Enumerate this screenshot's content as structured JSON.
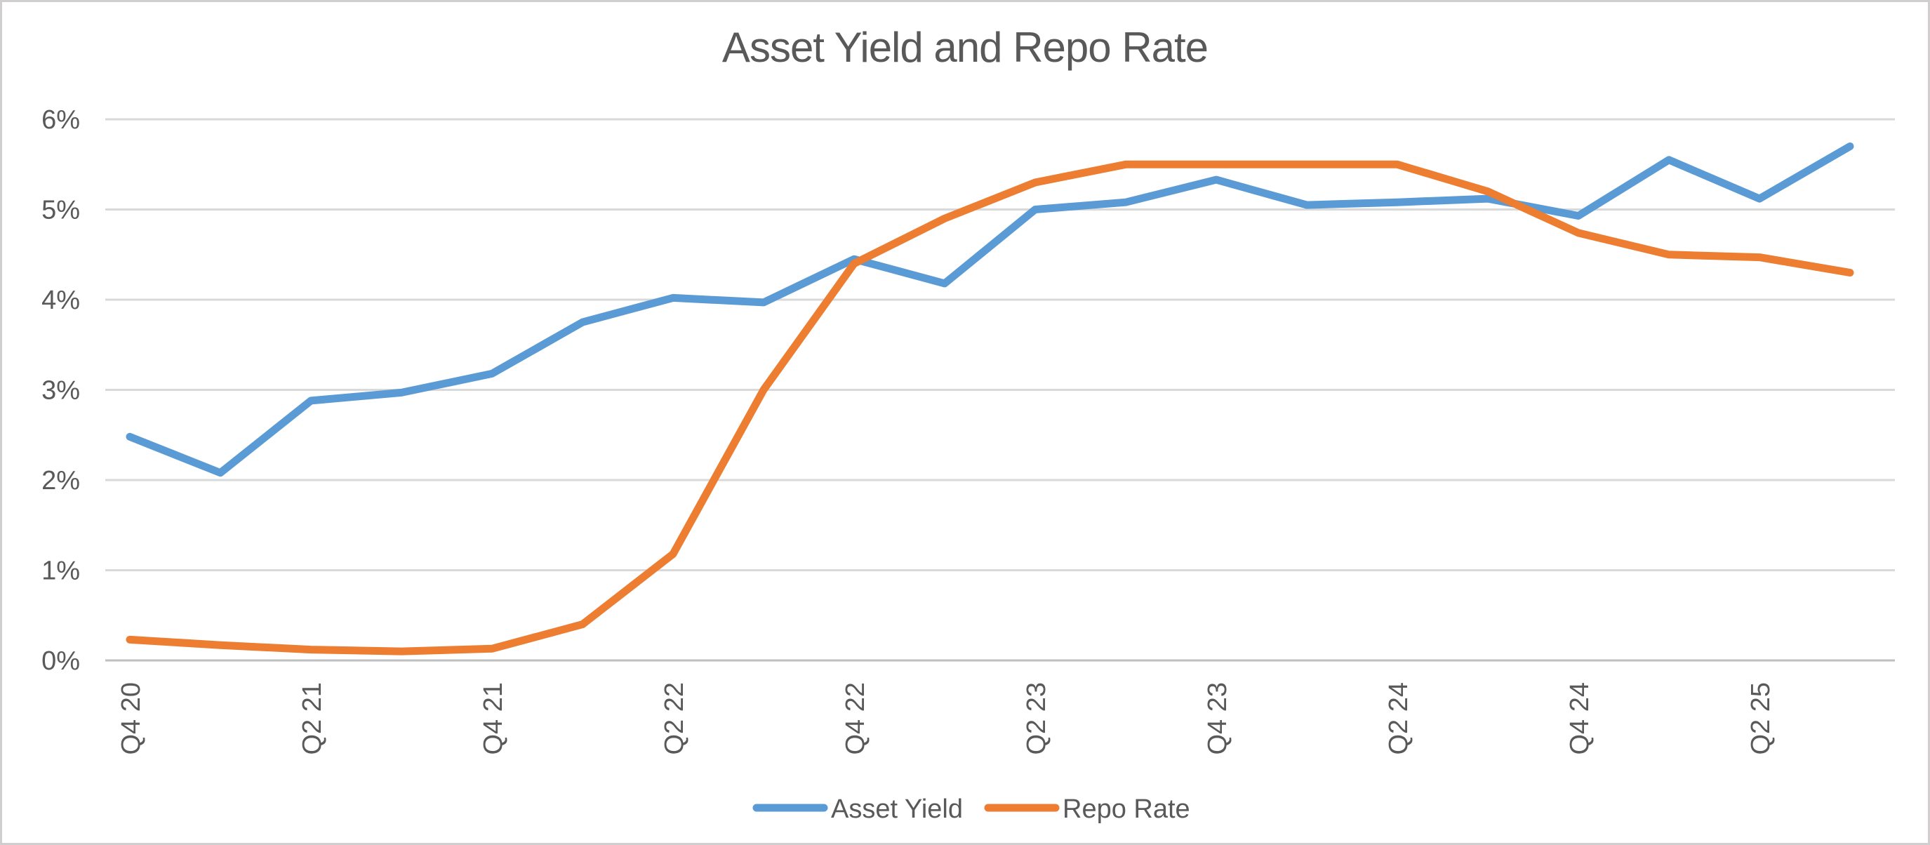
{
  "chart_data": {
    "type": "line",
    "title": "Asset Yield and Repo Rate",
    "categories": [
      "Q4 20",
      "Q1 21",
      "Q2 21",
      "Q3 21",
      "Q4 21",
      "Q1 22",
      "Q2 22",
      "Q3 22",
      "Q4 22",
      "Q1 23",
      "Q2 23",
      "Q3 23",
      "Q4 23",
      "Q1 24",
      "Q2 24",
      "Q3 24",
      "Q4 24",
      "Q1 25",
      "Q2 25",
      "Q3 25"
    ],
    "x_tick_labels": [
      "Q4 20",
      "Q2 21",
      "Q4 21",
      "Q2 22",
      "Q4 22",
      "Q2 23",
      "Q4 23",
      "Q2 24",
      "Q4 24",
      "Q2 25"
    ],
    "x_tick_every": 2,
    "y_ticks": [
      "0%",
      "1%",
      "2%",
      "3%",
      "4%",
      "5%",
      "6%"
    ],
    "ylim": [
      0,
      6
    ],
    "grid": true,
    "legend_position": "bottom-center",
    "series": [
      {
        "name": "Asset Yield",
        "color": "#5B9BD5",
        "values": [
          2.48,
          2.08,
          2.88,
          2.97,
          3.18,
          3.75,
          4.02,
          3.97,
          4.45,
          4.18,
          5.0,
          5.08,
          5.33,
          5.05,
          5.08,
          5.12,
          4.93,
          5.55,
          5.12,
          5.7
        ]
      },
      {
        "name": "Repo Rate",
        "color": "#ED7D31",
        "values": [
          0.23,
          0.17,
          0.12,
          0.1,
          0.13,
          0.4,
          1.18,
          3.0,
          4.4,
          4.9,
          5.3,
          5.5,
          5.5,
          5.5,
          5.5,
          5.2,
          4.74,
          4.5,
          4.47,
          4.3
        ]
      }
    ]
  },
  "colors": {
    "text_gray": "#595959",
    "gridline": "#D9D9D9",
    "axis_line": "#BFBFBF",
    "frame_border": "#D0CECE",
    "background": "#FFFFFF"
  }
}
